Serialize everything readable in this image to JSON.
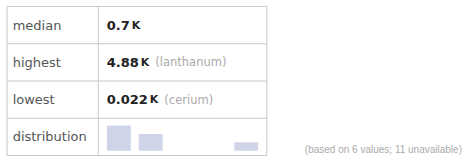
{
  "chart_data": {
    "type": "bar",
    "categories": [
      null,
      null,
      null,
      null,
      null
    ],
    "values": [
      3,
      2,
      0,
      0,
      1
    ],
    "color": "#d0d4e8",
    "ylim": [
      0,
      3.3
    ],
    "grid": false,
    "tick_labels": false,
    "annotations": [
      {
        "row": [
          "median",
          "0.7",
          "K"
        ]
      },
      {
        "row": [
          "highest",
          "4.88",
          "K",
          "(lanthanum)"
        ]
      },
      {
        "row": [
          "lowest",
          "0.022",
          "K",
          "(cerium)"
        ]
      },
      {
        "row": [
          "distribution"
        ]
      },
      {
        "footer": "(based on 6 values; 11 unavailable)"
      }
    ]
  }
}
